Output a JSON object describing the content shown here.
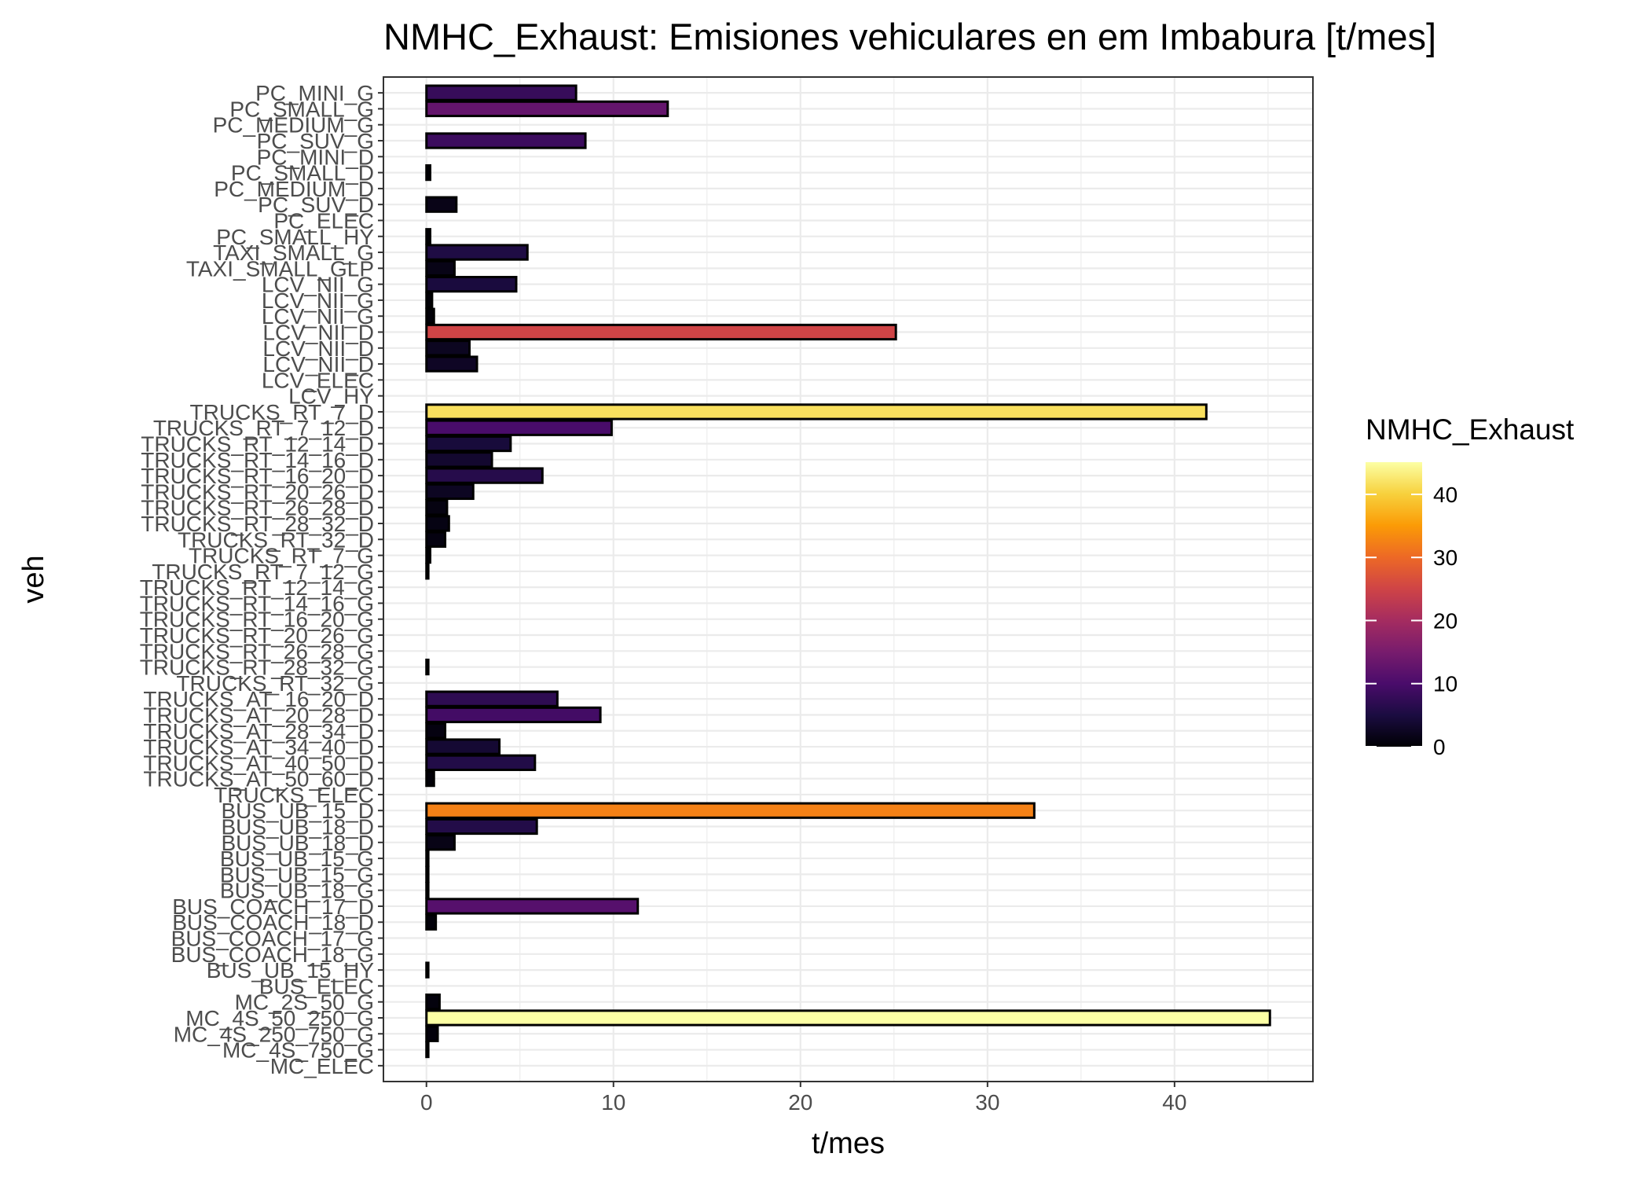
{
  "chart_data": {
    "type": "bar",
    "orientation": "horizontal",
    "title": "NMHC_Exhaust: Emisiones vehiculares en  em Imbabura [t/mes]",
    "xlabel": "t/mes",
    "ylabel": "veh",
    "xlim": [
      -2.3,
      45.1
    ],
    "x_ticks": [
      0,
      10,
      20,
      30,
      40
    ],
    "grid": true,
    "legend": {
      "title": "NMHC_Exhaust",
      "position": "right",
      "ticks": [
        0,
        10,
        20,
        30,
        40
      ],
      "range": [
        0,
        45.1
      ],
      "colorscale": [
        "#000004",
        "#1b0c41",
        "#4a0c6b",
        "#781c6d",
        "#a52c60",
        "#cf4446",
        "#ed6925",
        "#fb9b06",
        "#f7d13d",
        "#fcffa4"
      ]
    },
    "categories": [
      "PC_MINI_G",
      "PC_SMALL_G",
      "PC_MEDIUM_G",
      "PC_SUV_G",
      "PC_MINI_D",
      "PC_SMALL_D",
      "PC_MEDIUM_D",
      "PC_SUV_D",
      "PC_ELEC",
      "PC_SMALL_HY",
      "TAXI_SMALL_G",
      "TAXI_SMALL_GLP",
      "LCV_NII_G",
      "LCV_NII_G",
      "LCV_NII_G",
      "LCV_NII_D",
      "LCV_NII_D",
      "LCV_NII_D",
      "LCV_ELEC",
      "LCV_HY",
      "TRUCKS_RT_7_D",
      "TRUCKS_RT_7_12_D",
      "TRUCKS_RT_12_14_D",
      "TRUCKS_RT_14_16_D",
      "TRUCKS_RT_16_20_D",
      "TRUCKS_RT_20_26_D",
      "TRUCKS_RT_26_28_D",
      "TRUCKS_RT_28_32_D",
      "TRUCKS_RT_32_D",
      "TRUCKS_RT_7_G",
      "TRUCKS_RT_7_12_G",
      "TRUCKS_RT_12_14_G",
      "TRUCKS_RT_14_16_G",
      "TRUCKS_RT_16_20_G",
      "TRUCKS_RT_20_26_G",
      "TRUCKS_RT_26_28_G",
      "TRUCKS_RT_28_32_G",
      "TRUCKS_RT_32_G",
      "TRUCKS_AT_16_20_D",
      "TRUCKS_AT_20_28_D",
      "TRUCKS_AT_28_34_D",
      "TRUCKS_AT_34_40_D",
      "TRUCKS_AT_40_50_D",
      "TRUCKS_AT_50_60_D",
      "TRUCKS_ELEC",
      "BUS_UB_15_D",
      "BUS_UB_18_D",
      "BUS_UB_18_D",
      "BUS_UB_15_G",
      "BUS_UB_15_G",
      "BUS_UB_18_G",
      "BUS_COACH_17_D",
      "BUS_COACH_18_D",
      "BUS_COACH_17_G",
      "BUS_COACH_18_G",
      "BUS_UB_15_HY",
      "BUS_ELEC",
      "MC_2S_50_G",
      "MC_4S_50_250_G",
      "MC_4S_250_750_G",
      "MC_4S_750_G",
      "MC_ELEC"
    ],
    "values": [
      8.0,
      12.9,
      0.0,
      8.5,
      0.0,
      0.2,
      0.0,
      1.6,
      0.0,
      0.2,
      5.4,
      1.5,
      4.8,
      0.3,
      0.4,
      25.1,
      2.3,
      2.7,
      0.0,
      0.0,
      41.7,
      9.9,
      4.5,
      3.5,
      6.2,
      2.5,
      1.1,
      1.2,
      1.0,
      0.2,
      0.1,
      0.0,
      0.0,
      0.0,
      0.0,
      0.0,
      0.1,
      0.0,
      7.0,
      9.3,
      1.0,
      3.9,
      5.8,
      0.4,
      0.0,
      32.5,
      5.9,
      1.5,
      0.1,
      0.1,
      0.1,
      11.3,
      0.5,
      0.0,
      0.0,
      0.1,
      0.0,
      0.7,
      45.1,
      0.6,
      0.1,
      0.0
    ]
  }
}
